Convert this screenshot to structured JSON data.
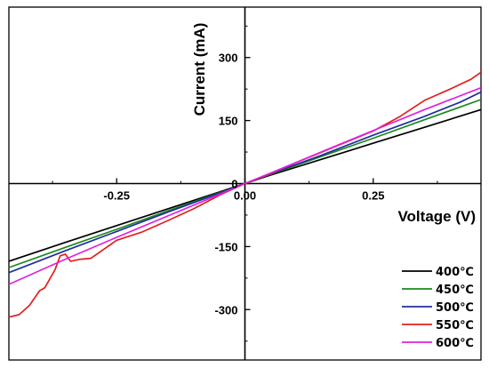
{
  "chart_data": {
    "type": "line",
    "xlabel": "Voltage (V)",
    "ylabel": "Current (mA)",
    "xlim": [
      -0.46,
      0.46
    ],
    "ylim": [
      -420,
      420
    ],
    "x_ticks": [
      -0.25,
      0.0,
      0.25
    ],
    "x_tick_labels": [
      "-0.25",
      "0.00",
      "0.25"
    ],
    "y_ticks": [
      -300,
      -150,
      0,
      150,
      300
    ],
    "y_tick_labels": [
      "-300",
      "-150",
      "0",
      "150",
      "300"
    ],
    "grid": false,
    "legend_position": "bottom-right",
    "series": [
      {
        "name": "400℃",
        "color": "#000000",
        "x": [
          -0.46,
          -0.35,
          -0.25,
          -0.15,
          -0.05,
          0.0,
          0.05,
          0.15,
          0.25,
          0.35,
          0.46
        ],
        "y": [
          -185,
          -140,
          -100,
          -60,
          -20,
          0,
          20,
          58,
          96,
          134,
          176
        ]
      },
      {
        "name": "450℃",
        "color": "#1a8a1a",
        "x": [
          -0.46,
          -0.35,
          -0.25,
          -0.15,
          -0.05,
          0.0,
          0.05,
          0.15,
          0.25,
          0.35,
          0.46
        ],
        "y": [
          -200,
          -152,
          -109,
          -65,
          -22,
          0,
          22,
          65,
          108,
          152,
          200
        ]
      },
      {
        "name": "500℃",
        "color": "#1f2f9e",
        "x": [
          -0.46,
          -0.35,
          -0.25,
          -0.15,
          -0.05,
          0.0,
          0.05,
          0.15,
          0.25,
          0.35,
          0.42,
          0.46
        ],
        "y": [
          -212,
          -160,
          -114,
          -68,
          -23,
          0,
          23,
          68,
          115,
          160,
          194,
          218
        ]
      },
      {
        "name": "550℃",
        "color": "#e02020",
        "x": [
          -0.46,
          -0.44,
          -0.42,
          -0.4,
          -0.39,
          -0.37,
          -0.36,
          -0.35,
          -0.34,
          -0.32,
          -0.3,
          -0.25,
          -0.2,
          -0.15,
          -0.1,
          -0.05,
          0.0,
          0.05,
          0.1,
          0.15,
          0.2,
          0.25,
          0.3,
          0.35,
          0.4,
          0.44,
          0.46
        ],
        "y": [
          -318,
          -312,
          -290,
          -255,
          -248,
          -205,
          -172,
          -168,
          -185,
          -180,
          -178,
          -135,
          -115,
          -88,
          -60,
          -28,
          0,
          24,
          50,
          75,
          100,
          125,
          158,
          198,
          225,
          248,
          265
        ]
      },
      {
        "name": "600℃",
        "color": "#e020e0",
        "x": [
          -0.46,
          -0.35,
          -0.25,
          -0.15,
          -0.05,
          0.0,
          0.05,
          0.15,
          0.25,
          0.35,
          0.46
        ],
        "y": [
          -240,
          -180,
          -128,
          -77,
          -26,
          0,
          25,
          76,
          126,
          176,
          228
        ]
      }
    ]
  }
}
